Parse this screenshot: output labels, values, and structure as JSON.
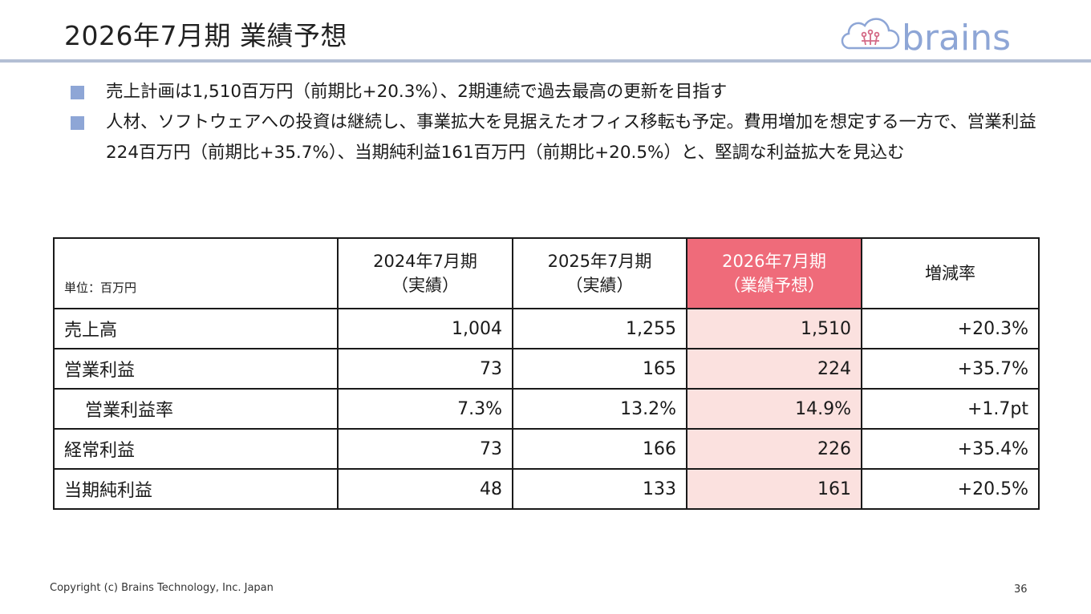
{
  "slide": {
    "title": "2026年7月期 業績予想",
    "logo_text": "brains",
    "bullets": [
      "売上計画は1,510百万円（前期比+20.3%）、2期連続で過去最高の更新を目指す",
      "人材、ソフトウェアへの投資は継続し、事業拡大を見据えたオフィス移転も予定。費用増加を想定する一方で、営業利益224百万円（前期比+35.7%）、当期純利益161百万円（前期比+20.5%）と、堅調な利益拡大を見込む"
    ],
    "footer": "Copyright (c) Brains Technology, Inc. Japan",
    "page_number": "36"
  },
  "table": {
    "unit": "単位：百万円",
    "headers": [
      {
        "line1": "2024年7月期",
        "line2": "（実績）"
      },
      {
        "line1": "2025年7月期",
        "line2": "（実績）"
      },
      {
        "line1": "2026年7月期",
        "line2": "（業績予想）"
      },
      {
        "line1": "増減率",
        "line2": ""
      }
    ],
    "rows": [
      {
        "label": "売上高",
        "v2024": "1,004",
        "v2025": "1,255",
        "v2026": "1,510",
        "change": "+20.3%"
      },
      {
        "label": "営業利益",
        "v2024": "73",
        "v2025": "165",
        "v2026": "224",
        "change": "+35.7%"
      },
      {
        "label": "営業利益率",
        "v2024": "7.3%",
        "v2025": "13.2%",
        "v2026": "14.9%",
        "change": "+1.7pt"
      },
      {
        "label": "経常利益",
        "v2024": "73",
        "v2025": "166",
        "v2026": "226",
        "change": "+35.4%"
      },
      {
        "label": "当期純利益",
        "v2024": "48",
        "v2025": "133",
        "v2026": "161",
        "change": "+20.5%"
      }
    ]
  },
  "colors": {
    "title_rule": "#b3bfd4",
    "bullet_square": "#8ea6d6",
    "forecast_header": "#ef6b7a",
    "forecast_cells": "#fbe1df",
    "logo": "#8ea6d6"
  }
}
